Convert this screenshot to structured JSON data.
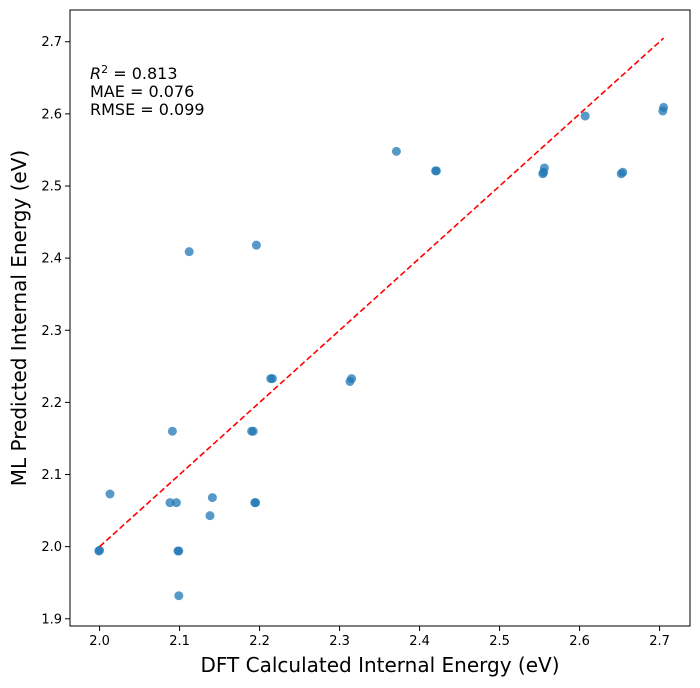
{
  "chart_data": {
    "type": "scatter",
    "title": "",
    "xlabel": "DFT Calculated Internal Energy (eV)",
    "ylabel": "ML Predicted Internal Energy (eV)",
    "xlim": [
      1.963,
      2.738
    ],
    "ylim": [
      1.89,
      2.744
    ],
    "xticks": [
      "2.0",
      "2.1",
      "2.2",
      "2.3",
      "2.4",
      "2.5",
      "2.6",
      "2.7"
    ],
    "yticks": [
      "1.9",
      "2.0",
      "2.1",
      "2.2",
      "2.3",
      "2.4",
      "2.5",
      "2.6",
      "2.7"
    ],
    "grid": false,
    "point_color": "#1f77b4",
    "reference_line": {
      "from": [
        2.0,
        2.0
      ],
      "to": [
        2.705,
        2.705
      ],
      "color": "#ff0000",
      "style": "dashed"
    },
    "metrics": {
      "r2_label": "R",
      "r2_sup": "2",
      "r2_value": " = 0.813",
      "mae": "MAE = 0.076",
      "rmse": "RMSE = 0.099"
    },
    "points": [
      {
        "x": 1.999,
        "y": 1.994
      },
      {
        "x": 2.0,
        "y": 1.995
      },
      {
        "x": 2.013,
        "y": 2.073
      },
      {
        "x": 2.088,
        "y": 2.061
      },
      {
        "x": 2.091,
        "y": 2.16
      },
      {
        "x": 2.096,
        "y": 2.061
      },
      {
        "x": 2.098,
        "y": 1.994
      },
      {
        "x": 2.099,
        "y": 1.994
      },
      {
        "x": 2.099,
        "y": 1.932
      },
      {
        "x": 2.112,
        "y": 2.409
      },
      {
        "x": 2.138,
        "y": 2.043
      },
      {
        "x": 2.141,
        "y": 2.068
      },
      {
        "x": 2.19,
        "y": 2.16
      },
      {
        "x": 2.192,
        "y": 2.16
      },
      {
        "x": 2.194,
        "y": 2.061
      },
      {
        "x": 2.195,
        "y": 2.061
      },
      {
        "x": 2.196,
        "y": 2.418
      },
      {
        "x": 2.214,
        "y": 2.233
      },
      {
        "x": 2.216,
        "y": 2.233
      },
      {
        "x": 2.313,
        "y": 2.229
      },
      {
        "x": 2.315,
        "y": 2.233
      },
      {
        "x": 2.371,
        "y": 2.548
      },
      {
        "x": 2.42,
        "y": 2.521
      },
      {
        "x": 2.421,
        "y": 2.521
      },
      {
        "x": 2.554,
        "y": 2.517
      },
      {
        "x": 2.555,
        "y": 2.519
      },
      {
        "x": 2.556,
        "y": 2.525
      },
      {
        "x": 2.607,
        "y": 2.597
      },
      {
        "x": 2.652,
        "y": 2.517
      },
      {
        "x": 2.654,
        "y": 2.519
      },
      {
        "x": 2.704,
        "y": 2.604
      },
      {
        "x": 2.705,
        "y": 2.609
      }
    ]
  }
}
